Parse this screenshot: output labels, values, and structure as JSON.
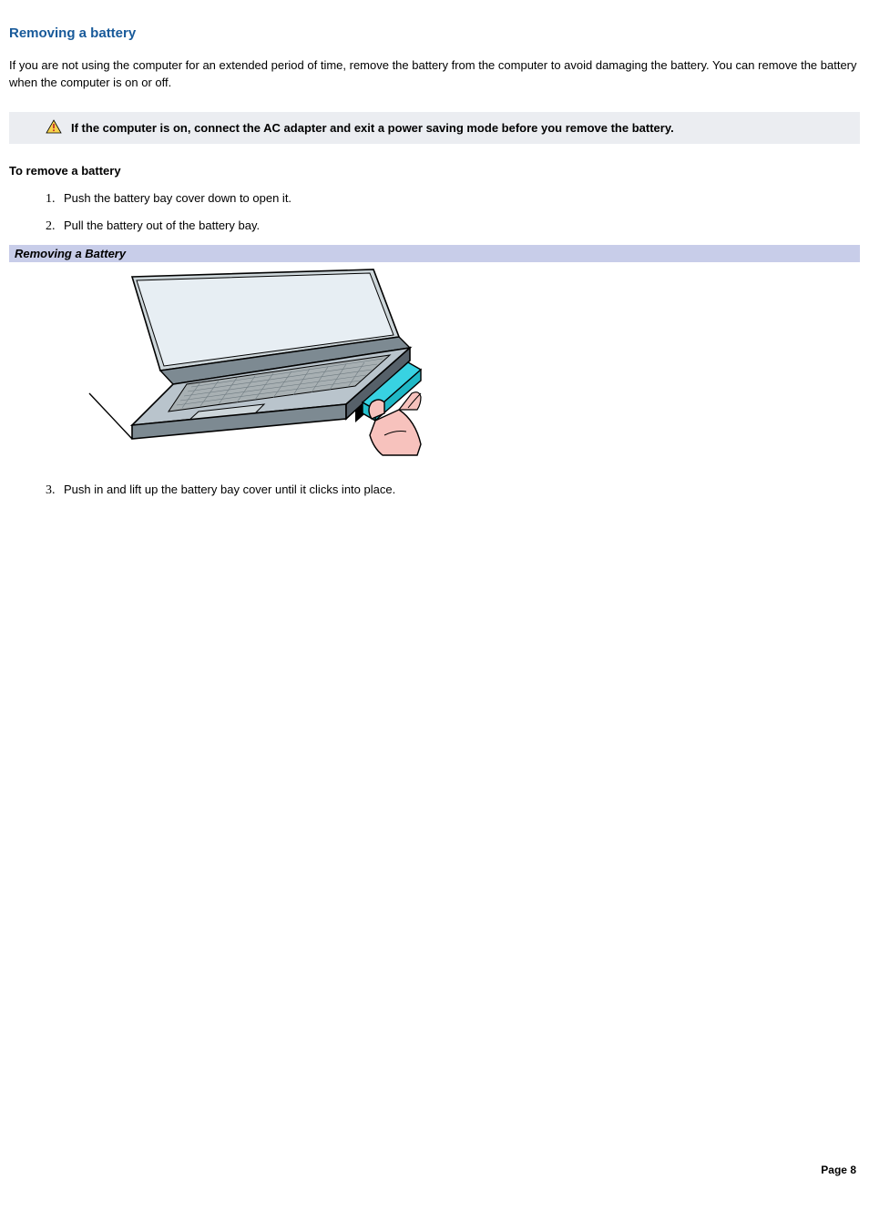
{
  "colors": {
    "title": "#185a9a",
    "warning_bg": "#ebedf1",
    "figure_bar_bg": "#c8cde9",
    "text": "#000000",
    "page_bg": "#ffffff",
    "warn_triangle_fill": "#f7d24a",
    "warn_triangle_stroke": "#000000",
    "warn_bang": "#c0322b"
  },
  "title": "Removing a battery",
  "intro": "If you are not using the computer for an extended period of time, remove the battery from the computer to avoid damaging the battery. You can remove the battery when the computer is on or off.",
  "warning_text": "If the computer is on, connect the AC adapter and exit a power saving mode before you remove the battery.",
  "subhead": "To remove a battery",
  "steps_first": [
    "Push the battery bay cover down to open it.",
    "Pull the battery out of the battery bay."
  ],
  "figure_caption": "Removing a Battery",
  "illustration": {
    "type": "infographic",
    "alt": "Illustration of a hand removing a battery from an open laptop's side bay",
    "laptop_body": "#7d8a92",
    "laptop_body_light": "#b9c4cc",
    "laptop_keys": "#a8b0b3",
    "laptop_outline": "#000000",
    "laptop_highlight": "#cdd6da",
    "screen_edge": "#e7eef3",
    "table_line": "#000000",
    "battery_fill": "#38d2e2",
    "battery_outline": "#000000",
    "hand_fill": "#f7c2bd",
    "hand_outline": "#000000",
    "shadow": "#566069"
  },
  "steps_second_start": 3,
  "steps_second": [
    "Push in and lift up the battery bay cover until it clicks into place."
  ],
  "footer": "Page 8"
}
